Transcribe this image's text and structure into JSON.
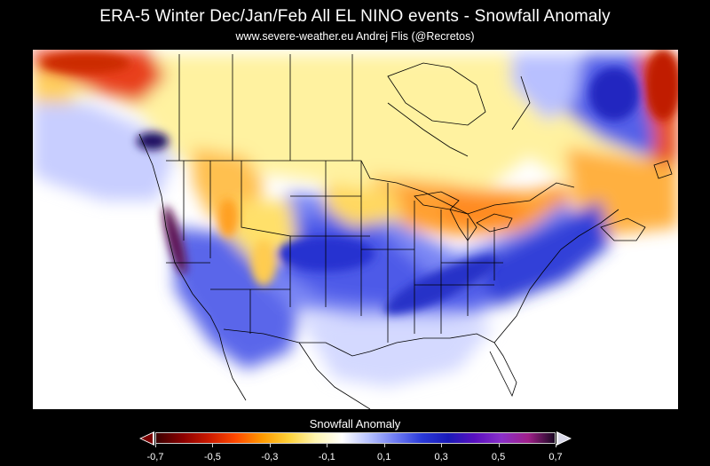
{
  "title": "ERA-5  Winter Dec/Jan/Feb  All EL NINO events  -  Snowfall Anomaly",
  "subtitle": "www.severe-weather.eu   Andrej Flis (@Recretos)",
  "legend": {
    "title": "Snowfall Anomaly",
    "ticks": [
      "-0,7",
      "-0,5",
      "-0,3",
      "-0,1",
      "0,1",
      "0,3",
      "0,5",
      "0,7"
    ],
    "colors": [
      "#3a0000",
      "#8b0000",
      "#cc1a00",
      "#ff4a00",
      "#ff9a00",
      "#ffd23a",
      "#fff5b0",
      "#ffffff",
      "#b7c2ff",
      "#6f7cf2",
      "#2a3ad8",
      "#1a1ab8",
      "#5a10c0",
      "#8a30c8",
      "#a0208a",
      "#1a0822"
    ]
  },
  "map_colors": {
    "strong_positive": "#1a1ab8",
    "moderate_positive": "#4f5be6",
    "light_positive": "#c5cbff",
    "strong_negative": "#e23a00",
    "moderate_negative": "#ffa21a",
    "light_negative": "#fff09a",
    "outline": "#000000"
  }
}
